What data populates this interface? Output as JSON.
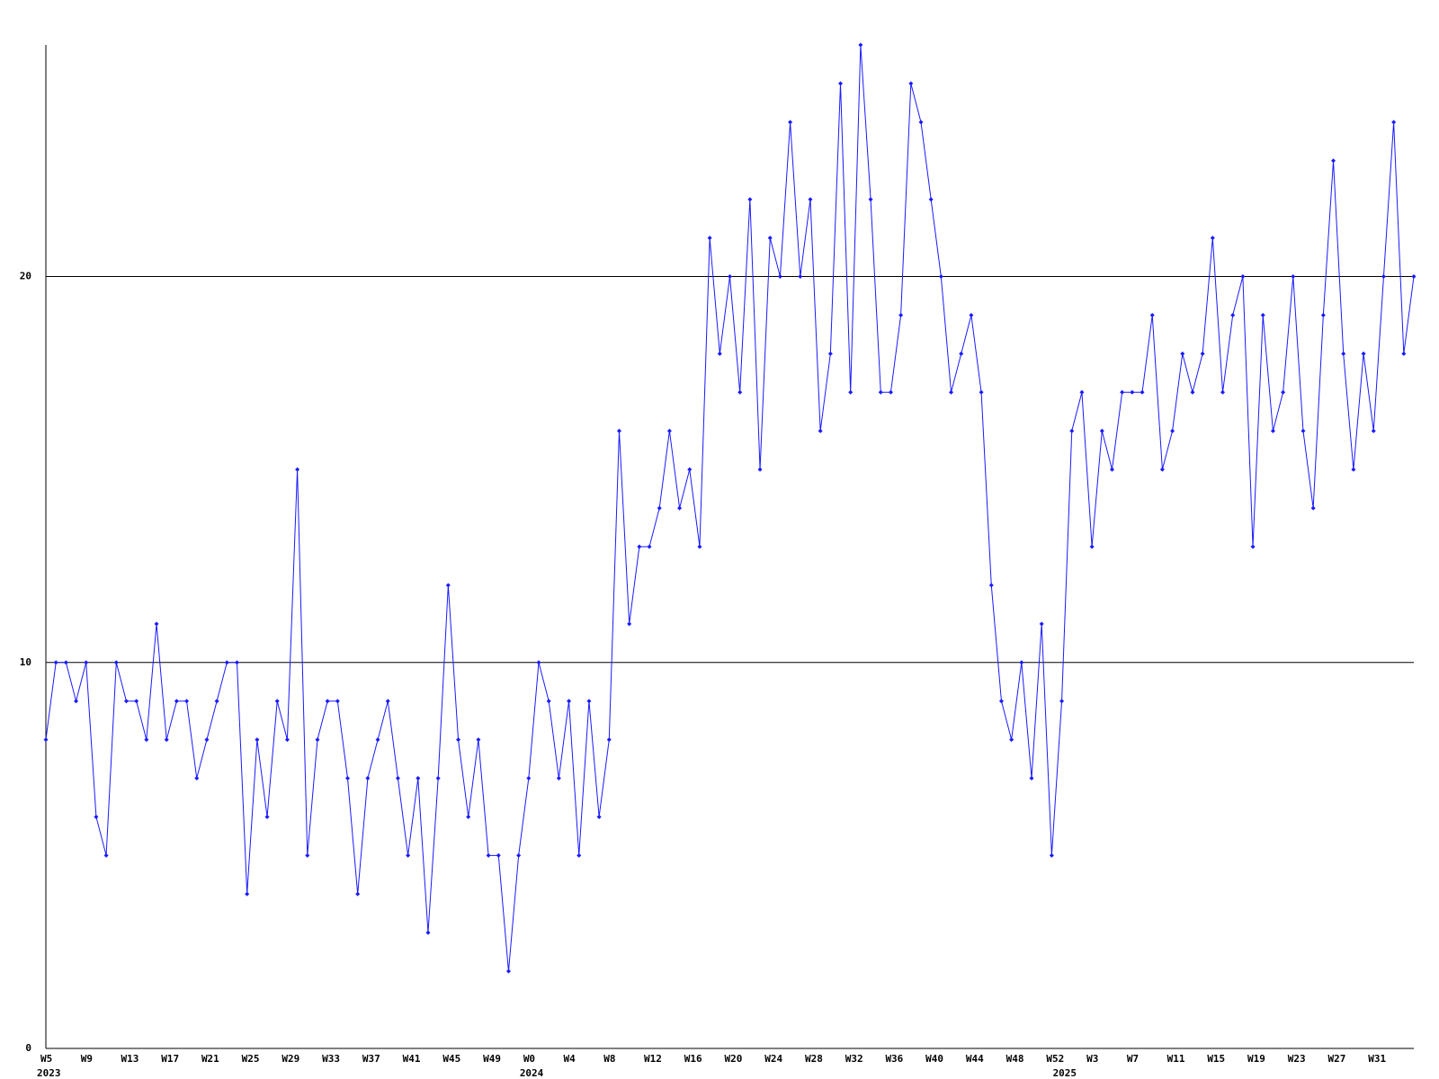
{
  "chart_data": {
    "type": "line",
    "color": "#1a1aff",
    "grid": true,
    "ylim": [
      0,
      26
    ],
    "yticks": [
      0,
      10,
      20
    ],
    "categories": [
      "W5",
      null,
      null,
      null,
      "W9",
      null,
      null,
      null,
      "W13",
      null,
      null,
      null,
      "W17",
      null,
      null,
      null,
      "W21",
      null,
      null,
      null,
      "W25",
      null,
      null,
      null,
      "W29",
      null,
      null,
      null,
      "W33",
      null,
      null,
      null,
      "W37",
      null,
      null,
      null,
      "W41",
      null,
      null,
      null,
      "W45",
      null,
      null,
      null,
      "W49",
      null,
      null,
      null,
      "W0",
      null,
      null,
      null,
      "W4",
      null,
      null,
      null,
      "W8",
      null,
      null,
      null,
      "W12",
      null,
      null,
      null,
      "W16",
      null,
      null,
      null,
      "W20",
      null,
      null,
      null,
      "W24",
      null,
      null,
      null,
      "W28",
      null,
      null,
      null,
      "W32",
      null,
      null,
      null,
      "W36",
      null,
      null,
      null,
      "W40",
      null,
      null,
      null,
      "W44",
      null,
      null,
      null,
      "W48",
      null,
      null,
      null,
      "W52",
      null,
      null,
      null,
      "W3",
      null,
      null,
      null,
      "W7",
      null,
      null,
      null,
      "W11",
      null,
      null,
      null,
      "W15",
      null,
      null,
      null,
      "W19",
      null,
      null,
      null,
      "W23",
      null,
      null,
      null,
      "W27",
      null,
      null,
      null,
      "W31",
      null,
      null,
      null,
      null
    ],
    "years": [
      "2023",
      null,
      null,
      null,
      null,
      null,
      null,
      null,
      null,
      null,
      null,
      null,
      null,
      null,
      null,
      null,
      null,
      null,
      null,
      null,
      null,
      null,
      null,
      null,
      null,
      null,
      null,
      null,
      null,
      null,
      null,
      null,
      null,
      null,
      null,
      null,
      null,
      null,
      null,
      null,
      null,
      null,
      null,
      null,
      null,
      null,
      null,
      null,
      "2024",
      null,
      null,
      null,
      null,
      null,
      null,
      null,
      null,
      null,
      null,
      null,
      null,
      null,
      null,
      null,
      null,
      null,
      null,
      null,
      null,
      null,
      null,
      null,
      null,
      null,
      null,
      null,
      null,
      null,
      null,
      null,
      null,
      null,
      null,
      null,
      null,
      null,
      null,
      null,
      null,
      null,
      null,
      null,
      null,
      null,
      null,
      null,
      null,
      null,
      null,
      null,
      null,
      "2025",
      null,
      null,
      null,
      null,
      null,
      null,
      null,
      null,
      null,
      null,
      null,
      null,
      null,
      null,
      null,
      null,
      null,
      null,
      null,
      null,
      null,
      null,
      null,
      null,
      null,
      null,
      null,
      null,
      null,
      null,
      null,
      null,
      null,
      null,
      null
    ],
    "values": [
      8,
      10,
      10,
      9,
      10,
      6,
      5,
      10,
      9,
      9,
      8,
      11,
      8,
      9,
      9,
      7,
      8,
      9,
      10,
      10,
      4,
      8,
      6,
      9,
      8,
      15,
      5,
      8,
      9,
      9,
      7,
      4,
      7,
      8,
      9,
      7,
      5,
      7,
      3,
      7,
      12,
      8,
      6,
      8,
      5,
      5,
      2,
      5,
      7,
      10,
      9,
      7,
      9,
      5,
      9,
      6,
      8,
      16,
      11,
      13,
      13,
      14,
      16,
      14,
      15,
      13,
      21,
      18,
      20,
      17,
      22,
      15,
      21,
      20,
      24,
      20,
      22,
      16,
      18,
      25,
      17,
      26,
      22,
      17,
      17,
      19,
      25,
      24,
      22,
      20,
      17,
      18,
      19,
      17,
      12,
      9,
      8,
      10,
      7,
      11,
      5,
      9,
      16,
      17,
      13,
      16,
      15,
      17,
      17,
      17,
      19,
      15,
      16,
      18,
      17,
      18,
      21,
      17,
      19,
      20,
      13,
      19,
      16,
      17,
      20,
      16,
      14,
      19,
      23,
      18,
      15,
      18,
      16,
      20,
      24,
      18,
      20
    ]
  }
}
